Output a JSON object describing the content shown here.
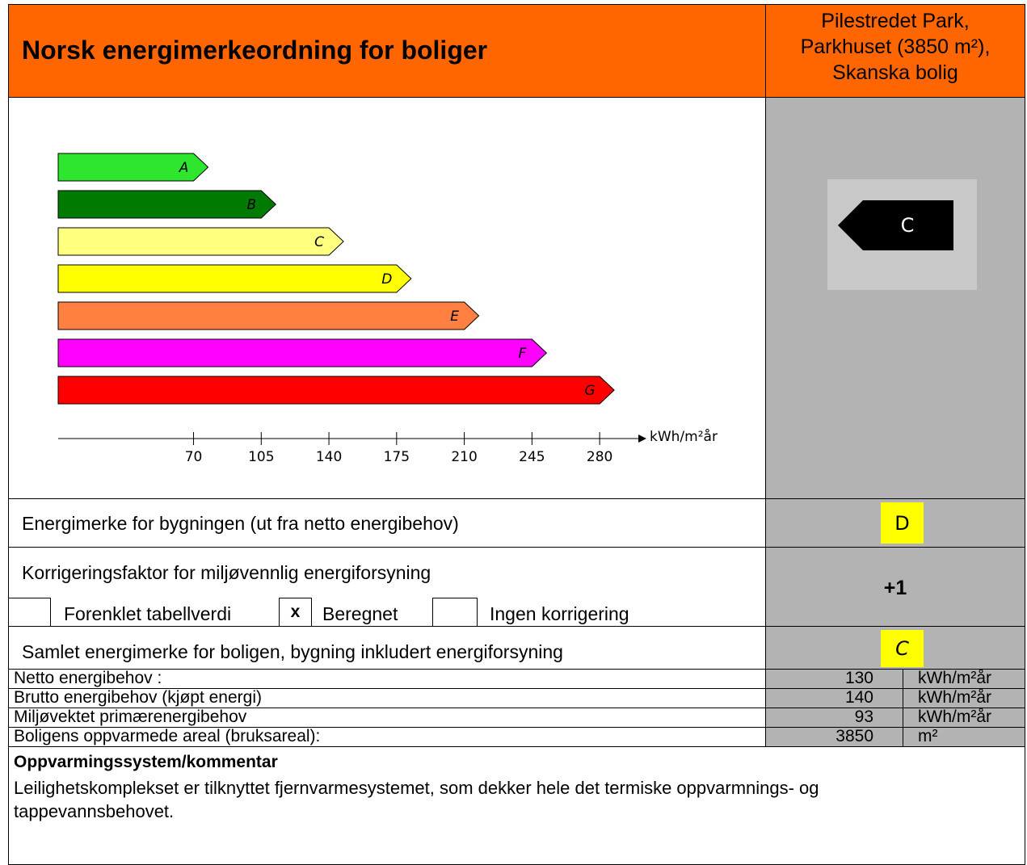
{
  "header": {
    "title": "Norsk energimerkeordning for boliger",
    "project": [
      "Pilestredet Park,",
      "Parkhuset (3850 m²),",
      "Skanska bolig"
    ]
  },
  "chart_data": {
    "type": "bar",
    "orientation": "horizontal",
    "categories": [
      "A",
      "B",
      "C",
      "D",
      "E",
      "F",
      "G"
    ],
    "values": [
      70,
      105,
      140,
      175,
      210,
      245,
      280
    ],
    "colors": [
      "#2EE62E",
      "#007A00",
      "#FFFF80",
      "#FFFF00",
      "#FF8040",
      "#FF00FF",
      "#FF0000"
    ],
    "xlim": [
      0,
      300
    ],
    "xticks": [
      70,
      105,
      140,
      175,
      210,
      245,
      280
    ],
    "xlabel": "kWh/m²år",
    "rating": "C"
  },
  "building_label": {
    "text": "Energimerke for bygningen (ut fra netto energibehov)",
    "value": "D"
  },
  "correction": {
    "text": "Korrigeringsfaktor for miljøvennlig energiforsyning",
    "value": "+1",
    "options": [
      {
        "label": "Forenklet tabellverdi"
      },
      {
        "label": "Beregnet",
        "mark": "x"
      },
      {
        "label": "Ingen korrigering"
      }
    ]
  },
  "total_label": {
    "text": "Samlet energimerke for boligen, bygning inkludert energiforsyning",
    "value": "C"
  },
  "metrics": [
    {
      "label": "Netto energibehov :",
      "value": 130,
      "unit": "kWh/m²år"
    },
    {
      "label": "Brutto energibehov (kjøpt energi)",
      "value": 140,
      "unit": "kWh/m²år"
    },
    {
      "label": "Miljøvektet primærenergibehov",
      "value": 93,
      "unit": "kWh/m²år"
    },
    {
      "label": "Boligens oppvarmede areal (bruksareal):",
      "value": 3850,
      "unit": "m²"
    }
  ],
  "comment": {
    "heading": "Oppvarmingssystem/kommentar",
    "text": "Leilighetskomplekset er tilknyttet fjernvarmesystemet, som dekker hele det termiske oppvarmnings- og tappevannsbehovet."
  }
}
